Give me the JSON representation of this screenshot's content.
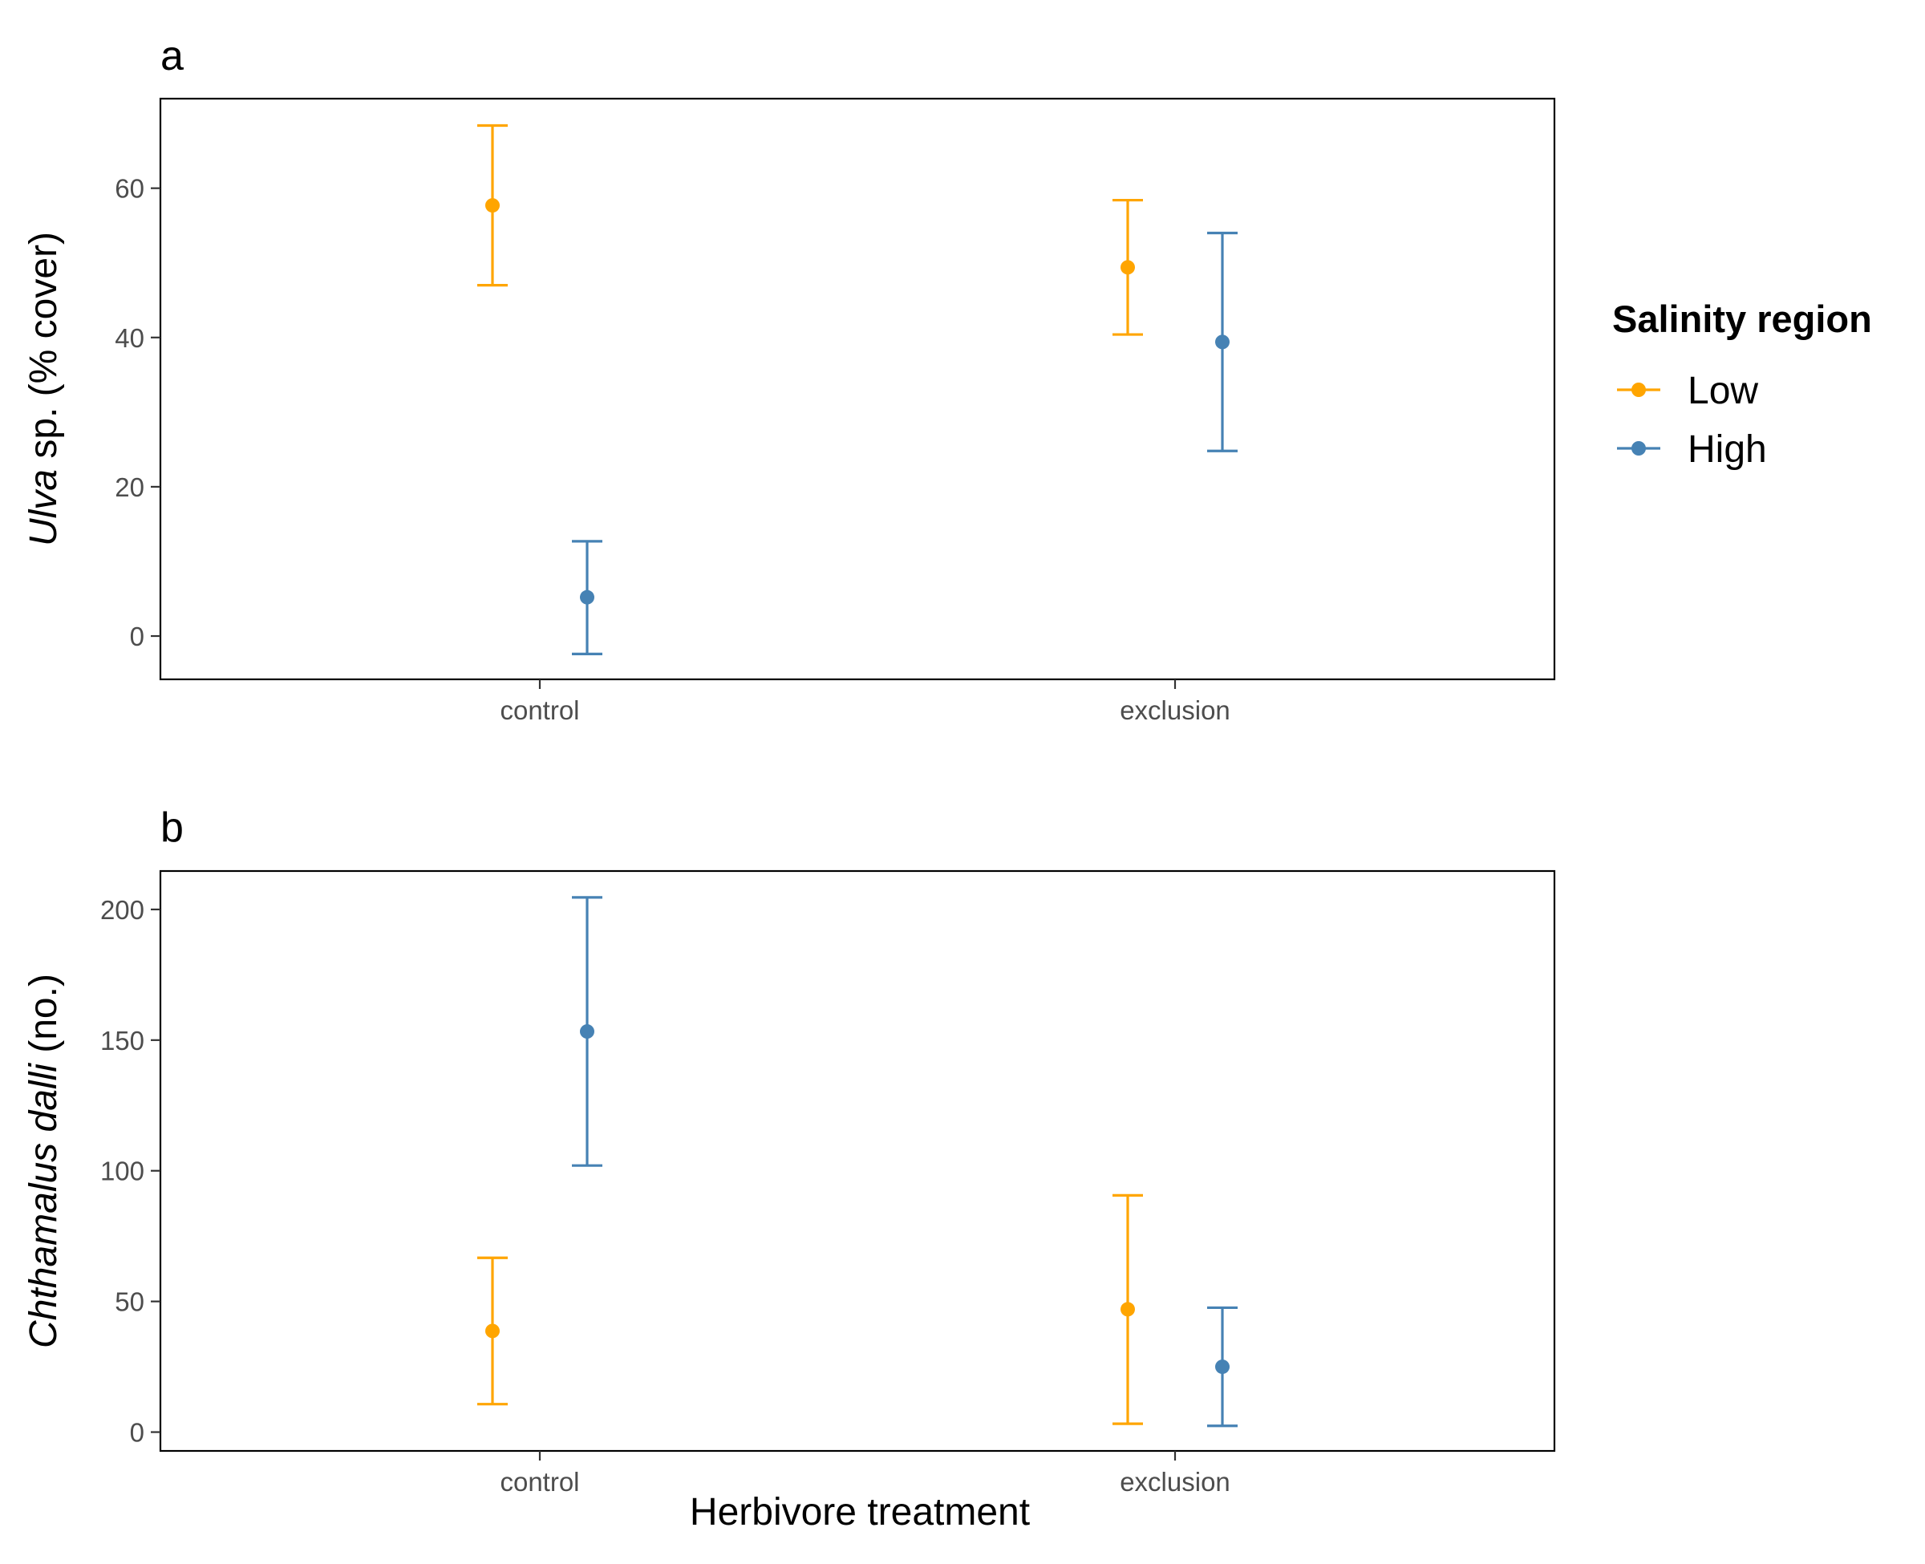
{
  "x_axis_title": "Herbivore treatment",
  "legend": {
    "title": "Salinity region",
    "items": [
      {
        "label": "Low",
        "color": "#FFA500"
      },
      {
        "label": "High",
        "color": "#4682B4"
      }
    ]
  },
  "chart_data": [
    {
      "type": "scatter",
      "panel_label": "a",
      "title": "",
      "xlabel": "Herbivore treatment",
      "ylabel": {
        "italic": "Ulva",
        "rest": " sp. (% cover)"
      },
      "categories": [
        "control",
        "exclusion"
      ],
      "yticks": [
        0,
        20,
        40,
        60
      ],
      "ylim": [
        -5.8,
        72
      ],
      "grid": false,
      "series": [
        {
          "name": "Low",
          "color": "#FFA500",
          "values": [
            57.7,
            49.4
          ],
          "lower": [
            47.0,
            40.4
          ],
          "upper": [
            68.4,
            58.4
          ]
        },
        {
          "name": "High",
          "color": "#4682B4",
          "values": [
            5.2,
            39.4
          ],
          "lower": [
            -2.4,
            24.8
          ],
          "upper": [
            12.7,
            54.0
          ]
        }
      ]
    },
    {
      "type": "scatter",
      "panel_label": "b",
      "title": "",
      "xlabel": "Herbivore treatment",
      "ylabel": {
        "italic": "Chthamalus dalli",
        "rest": " (no.)"
      },
      "categories": [
        "control",
        "exclusion"
      ],
      "yticks": [
        0,
        50,
        100,
        150,
        200
      ],
      "ylim": [
        -7.2,
        214.7
      ],
      "grid": false,
      "series": [
        {
          "name": "Low",
          "color": "#FFA500",
          "values": [
            38.7,
            47.0
          ],
          "lower": [
            10.7,
            3.2
          ],
          "upper": [
            66.7,
            90.6
          ]
        },
        {
          "name": "High",
          "color": "#4682B4",
          "values": [
            153.3,
            25.0
          ],
          "lower": [
            102.0,
            2.4
          ],
          "upper": [
            204.6,
            47.6
          ]
        }
      ]
    }
  ]
}
